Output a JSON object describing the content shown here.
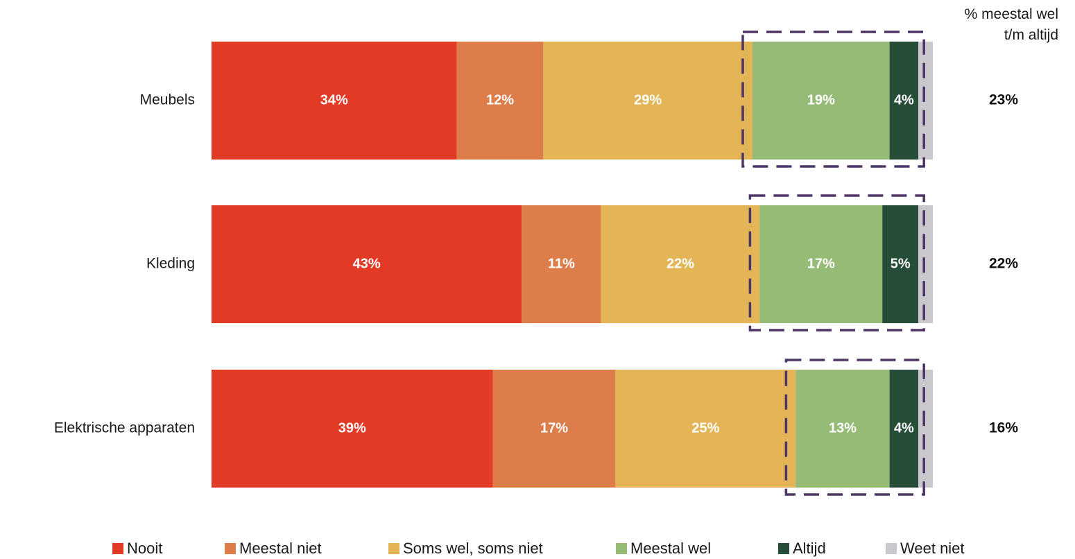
{
  "chart_data": {
    "type": "bar",
    "orientation": "horizontal",
    "stacked": true,
    "categories": [
      "Meubels",
      "Kleding",
      "Elektrische apparaten"
    ],
    "series": [
      {
        "name": "Nooit",
        "values": [
          34,
          43,
          39
        ],
        "color": "#e23a25"
      },
      {
        "name": "Meestal niet",
        "values": [
          12,
          11,
          17
        ],
        "color": "#dd7d4a"
      },
      {
        "name": "Soms wel, soms niet",
        "values": [
          29,
          22,
          25
        ],
        "color": "#e3b556"
      },
      {
        "name": "Meestal wel",
        "values": [
          19,
          17,
          13
        ],
        "color": "#96bb77"
      },
      {
        "name": "Altijd",
        "values": [
          4,
          5,
          4
        ],
        "color": "#264d38"
      },
      {
        "name": "Weet niet",
        "values": [
          2,
          2,
          2
        ],
        "color": "#c9c9cd"
      }
    ],
    "value_labels": [
      [
        "34%",
        "12%",
        "29%",
        "19%",
        "4%",
        ""
      ],
      [
        "43%",
        "11%",
        "22%",
        "17%",
        "5%",
        ""
      ],
      [
        "39%",
        "17%",
        "25%",
        "13%",
        "4%",
        ""
      ]
    ],
    "totals": {
      "header_line1": "% meestal wel",
      "header_line2": "t/m altijd",
      "values": [
        "23%",
        "22%",
        "16%"
      ]
    },
    "highlight": {
      "series": [
        "Meestal wel",
        "Altijd"
      ],
      "style": "dashed-box",
      "color": "#4e3566"
    },
    "xlim": [
      0,
      100
    ],
    "grid": false,
    "legend_position": "bottom"
  }
}
